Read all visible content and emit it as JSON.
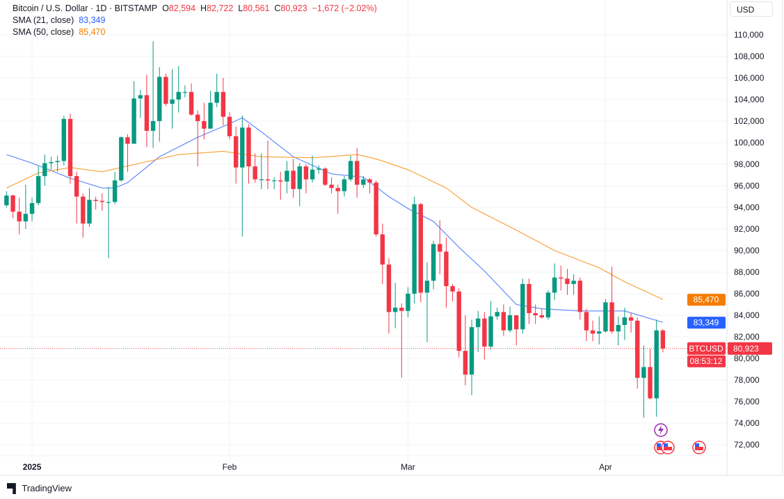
{
  "header": {
    "symbol_title": "Bitcoin / U.S. Dollar · 1D · BITSTAMP",
    "o_label": "O",
    "o_value": "82,594",
    "h_label": "H",
    "h_value": "82,722",
    "l_label": "L",
    "l_value": "80,561",
    "c_label": "C",
    "c_value": "80,923",
    "change": "−1,672 (−2.02%)",
    "sma21_label": "SMA (21, close)",
    "sma21_value": "83,349",
    "sma50_label": "SMA (50, close)",
    "sma50_value": "85,470"
  },
  "currency_button": "USD",
  "footer": {
    "brand": "TradingView",
    "logo_text": "TV"
  },
  "colors": {
    "up": "#089981",
    "down": "#f23645",
    "sma21": "#2962ff",
    "sma50": "#f7931a",
    "grid": "#f0f3fa",
    "price_line": "#f23645",
    "event_icon": "#9c27b0"
  },
  "icons": {
    "events": [
      "lightning-event-icon",
      "us-flag-event-icon",
      "us-flag-event-icon",
      "us-flag-event-icon"
    ]
  },
  "chart_data": {
    "type": "candlestick",
    "title": "Bitcoin / U.S. Dollar · 1D · BITSTAMP",
    "ylim": [
      71000,
      111000
    ],
    "y_ticks": [
      72000,
      74000,
      76000,
      78000,
      80000,
      82000,
      84000,
      86000,
      88000,
      90000,
      92000,
      94000,
      96000,
      98000,
      100000,
      102000,
      104000,
      106000,
      108000,
      110000
    ],
    "y_tick_labels": [
      "72,000",
      "74,000",
      "76,000",
      "78,000",
      "80,000",
      "82,000",
      "84,000",
      "86,000",
      "88,000",
      "90,000",
      "92,000",
      "94,000",
      "96,000",
      "98,000",
      "100,000",
      "102,000",
      "104,000",
      "106,000",
      "108,000",
      "110,000"
    ],
    "x_ticks": [
      {
        "date": "2025-01-01",
        "label": "2025"
      },
      {
        "date": "2025-02-01",
        "label": "Feb"
      },
      {
        "date": "2025-03-01",
        "label": "Mar"
      },
      {
        "date": "2025-04-01",
        "label": "Apr"
      }
    ],
    "grid": true,
    "columns": [
      "date",
      "open",
      "high",
      "low",
      "close"
    ],
    "candles": [
      [
        "2024-12-28",
        94200,
        95500,
        94000,
        95100
      ],
      [
        "2024-12-29",
        95100,
        95200,
        93000,
        93600
      ],
      [
        "2024-12-30",
        93600,
        94900,
        91500,
        92700
      ],
      [
        "2024-12-31",
        92700,
        96100,
        92000,
        93400
      ],
      [
        "2025-01-01",
        93400,
        94900,
        92700,
        94400
      ],
      [
        "2025-01-02",
        94400,
        97800,
        94200,
        96900
      ],
      [
        "2025-01-03",
        96900,
        98900,
        96000,
        98100
      ],
      [
        "2025-01-04",
        98100,
        98700,
        97500,
        98200
      ],
      [
        "2025-01-05",
        98200,
        98800,
        97300,
        98300
      ],
      [
        "2025-01-06",
        98300,
        102500,
        97900,
        102200
      ],
      [
        "2025-01-07",
        102200,
        102700,
        96200,
        96900
      ],
      [
        "2025-01-08",
        96900,
        97300,
        92500,
        95000
      ],
      [
        "2025-01-09",
        95000,
        95300,
        91200,
        92500
      ],
      [
        "2025-01-10",
        92500,
        95800,
        92200,
        94700
      ],
      [
        "2025-01-11",
        94700,
        95000,
        93800,
        94600
      ],
      [
        "2025-01-12",
        94600,
        95300,
        93700,
        94500
      ],
      [
        "2025-01-13",
        94500,
        95900,
        89300,
        94500
      ],
      [
        "2025-01-14",
        94500,
        97300,
        94300,
        96500
      ],
      [
        "2025-01-15",
        96500,
        100600,
        96400,
        100500
      ],
      [
        "2025-01-16",
        100500,
        100800,
        97300,
        99900
      ],
      [
        "2025-01-17",
        99900,
        105700,
        99900,
        104100
      ],
      [
        "2025-01-18",
        104100,
        104900,
        102300,
        104400
      ],
      [
        "2025-01-19",
        104400,
        106300,
        99600,
        101100
      ],
      [
        "2025-01-20",
        101100,
        109400,
        99500,
        102000
      ],
      [
        "2025-01-21",
        102000,
        107000,
        100100,
        106100
      ],
      [
        "2025-01-22",
        106100,
        106400,
        103400,
        103600
      ],
      [
        "2025-01-23",
        103600,
        106800,
        101300,
        104000
      ],
      [
        "2025-01-24",
        104000,
        107100,
        102800,
        104700
      ],
      [
        "2025-01-25",
        104700,
        105300,
        104200,
        104700
      ],
      [
        "2025-01-26",
        104700,
        105500,
        102500,
        102600
      ],
      [
        "2025-01-27",
        102600,
        103000,
        97800,
        102000
      ],
      [
        "2025-01-28",
        102000,
        103700,
        100300,
        101300
      ],
      [
        "2025-01-29",
        101300,
        104800,
        101300,
        103700
      ],
      [
        "2025-01-30",
        103700,
        106400,
        103300,
        104700
      ],
      [
        "2025-01-31",
        104700,
        106000,
        101600,
        102400
      ],
      [
        "2025-02-01",
        102400,
        102800,
        100300,
        100600
      ],
      [
        "2025-02-02",
        100600,
        101500,
        96200,
        97700
      ],
      [
        "2025-02-03",
        97700,
        102500,
        91300,
        101400
      ],
      [
        "2025-02-04",
        101400,
        101700,
        96200,
        97800
      ],
      [
        "2025-02-05",
        97800,
        99000,
        96300,
        96600
      ],
      [
        "2025-02-06",
        96600,
        99000,
        95700,
        96600
      ],
      [
        "2025-02-07",
        96600,
        100200,
        95700,
        96500
      ],
      [
        "2025-02-08",
        96500,
        96800,
        95700,
        96500
      ],
      [
        "2025-02-09",
        96500,
        97300,
        94700,
        96400
      ],
      [
        "2025-02-10",
        96400,
        98300,
        95300,
        97400
      ],
      [
        "2025-02-11",
        97400,
        98500,
        94900,
        95700
      ],
      [
        "2025-02-12",
        95700,
        98100,
        94100,
        97800
      ],
      [
        "2025-02-13",
        97800,
        98000,
        95300,
        96600
      ],
      [
        "2025-02-14",
        96600,
        98800,
        96300,
        97500
      ],
      [
        "2025-02-15",
        97500,
        97900,
        97100,
        97600
      ],
      [
        "2025-02-16",
        97600,
        97700,
        96000,
        96100
      ],
      [
        "2025-02-17",
        96100,
        96800,
        95300,
        95800
      ],
      [
        "2025-02-18",
        95800,
        96100,
        93400,
        95500
      ],
      [
        "2025-02-19",
        95500,
        96900,
        95000,
        96600
      ],
      [
        "2025-02-20",
        96600,
        98800,
        96400,
        98300
      ],
      [
        "2025-02-21",
        98300,
        99500,
        94900,
        96100
      ],
      [
        "2025-02-22",
        96100,
        96900,
        95800,
        96600
      ],
      [
        "2025-02-23",
        96600,
        96700,
        95300,
        96300
      ],
      [
        "2025-02-24",
        96300,
        96500,
        91300,
        91500
      ],
      [
        "2025-02-25",
        91500,
        92500,
        86900,
        88700
      ],
      [
        "2025-02-26",
        88700,
        89300,
        82300,
        84300
      ],
      [
        "2025-02-27",
        84300,
        87000,
        82800,
        84700
      ],
      [
        "2025-02-28",
        84700,
        85100,
        78200,
        84400
      ],
      [
        "2025-03-01",
        84400,
        86600,
        83800,
        86000
      ],
      [
        "2025-03-02",
        86000,
        95000,
        85100,
        94300
      ],
      [
        "2025-03-03",
        94300,
        94400,
        85200,
        86100
      ],
      [
        "2025-03-04",
        86100,
        88900,
        81500,
        87200
      ],
      [
        "2025-03-05",
        87200,
        90900,
        86400,
        90600
      ],
      [
        "2025-03-06",
        90600,
        92800,
        87800,
        89900
      ],
      [
        "2025-03-07",
        89900,
        91200,
        84700,
        86700
      ],
      [
        "2025-03-08",
        86700,
        86900,
        85300,
        86200
      ],
      [
        "2025-03-09",
        86200,
        86500,
        80100,
        80700
      ],
      [
        "2025-03-10",
        80700,
        84000,
        77500,
        78500
      ],
      [
        "2025-03-11",
        78500,
        83600,
        76600,
        82900
      ],
      [
        "2025-03-12",
        82900,
        84400,
        80600,
        83700
      ],
      [
        "2025-03-13",
        83700,
        84300,
        79900,
        81100
      ],
      [
        "2025-03-14",
        81100,
        85300,
        80800,
        83900
      ],
      [
        "2025-03-15",
        83900,
        84700,
        83600,
        84300
      ],
      [
        "2025-03-16",
        84300,
        85000,
        82100,
        82600
      ],
      [
        "2025-03-17",
        82600,
        84800,
        82400,
        84000
      ],
      [
        "2025-03-18",
        84000,
        84000,
        81200,
        82700
      ],
      [
        "2025-03-19",
        82700,
        87400,
        82300,
        86900
      ],
      [
        "2025-03-20",
        86900,
        87400,
        83200,
        84200
      ],
      [
        "2025-03-21",
        84200,
        85000,
        83200,
        84000
      ],
      [
        "2025-03-22",
        84000,
        84600,
        83700,
        83800
      ],
      [
        "2025-03-23",
        83800,
        86300,
        83600,
        86100
      ],
      [
        "2025-03-24",
        86100,
        88800,
        85400,
        87500
      ],
      [
        "2025-03-25",
        87500,
        88600,
        86300,
        87400
      ],
      [
        "2025-03-26",
        87400,
        88300,
        85900,
        86900
      ],
      [
        "2025-03-27",
        86900,
        87800,
        85900,
        87200
      ],
      [
        "2025-03-28",
        87200,
        87500,
        83600,
        84300
      ],
      [
        "2025-03-29",
        84300,
        84600,
        81600,
        82600
      ],
      [
        "2025-03-30",
        82600,
        83500,
        81600,
        82300
      ],
      [
        "2025-03-31",
        82300,
        83900,
        81300,
        82500
      ],
      [
        "2025-04-01",
        82500,
        85500,
        82400,
        85200
      ],
      [
        "2025-04-02",
        85200,
        88500,
        82300,
        82500
      ],
      [
        "2025-04-03",
        82500,
        83900,
        81200,
        83100
      ],
      [
        "2025-04-04",
        83100,
        84700,
        81700,
        83800
      ],
      [
        "2025-04-05",
        83800,
        84200,
        82400,
        83500
      ],
      [
        "2025-04-06",
        83500,
        83800,
        77200,
        78200
      ],
      [
        "2025-04-07",
        78200,
        81200,
        74500,
        79200
      ],
      [
        "2025-04-08",
        79200,
        80900,
        76200,
        76300
      ],
      [
        "2025-04-09",
        76300,
        83600,
        74600,
        82600
      ],
      [
        "2025-04-10",
        82594,
        82722,
        80561,
        80923
      ]
    ],
    "series": [
      {
        "name": "SMA (21, close)",
        "last": 83349,
        "points": [
          [
            "2024-12-28",
            98900
          ],
          [
            "2025-01-01",
            98100
          ],
          [
            "2025-01-07",
            96700
          ],
          [
            "2025-01-12",
            95800
          ],
          [
            "2025-01-14",
            95800
          ],
          [
            "2025-01-16",
            96300
          ],
          [
            "2025-01-21",
            98700
          ],
          [
            "2025-01-27",
            100500
          ],
          [
            "2025-01-31",
            101500
          ],
          [
            "2025-02-03",
            102300
          ],
          [
            "2025-02-06",
            101000
          ],
          [
            "2025-02-11",
            98700
          ],
          [
            "2025-02-17",
            97100
          ],
          [
            "2025-02-22",
            96800
          ],
          [
            "2025-02-26",
            95000
          ],
          [
            "2025-03-01",
            93900
          ],
          [
            "2025-03-05",
            92700
          ],
          [
            "2025-03-09",
            90300
          ],
          [
            "2025-03-13",
            88100
          ],
          [
            "2025-03-18",
            85000
          ],
          [
            "2025-03-22",
            84600
          ],
          [
            "2025-03-28",
            84400
          ],
          [
            "2025-04-01",
            84400
          ],
          [
            "2025-04-04",
            84400
          ],
          [
            "2025-04-10",
            83349
          ]
        ]
      },
      {
        "name": "SMA (50, close)",
        "last": 85470,
        "points": [
          [
            "2024-12-28",
            95800
          ],
          [
            "2025-01-02",
            97200
          ],
          [
            "2025-01-07",
            97700
          ],
          [
            "2025-01-12",
            97300
          ],
          [
            "2025-01-18",
            98100
          ],
          [
            "2025-01-24",
            98900
          ],
          [
            "2025-01-31",
            99200
          ],
          [
            "2025-02-06",
            98700
          ],
          [
            "2025-02-14",
            98600
          ],
          [
            "2025-02-21",
            98900
          ],
          [
            "2025-02-24",
            98500
          ],
          [
            "2025-03-01",
            97500
          ],
          [
            "2025-03-07",
            95800
          ],
          [
            "2025-03-11",
            94000
          ],
          [
            "2025-03-18",
            91900
          ],
          [
            "2025-03-24",
            90000
          ],
          [
            "2025-03-31",
            88400
          ],
          [
            "2025-04-04",
            87100
          ],
          [
            "2025-04-10",
            85470
          ]
        ]
      }
    ],
    "last_price": {
      "symbol": "BTCUSD",
      "value": 80923,
      "value_label": "80,923",
      "countdown": "08:53:12"
    }
  }
}
